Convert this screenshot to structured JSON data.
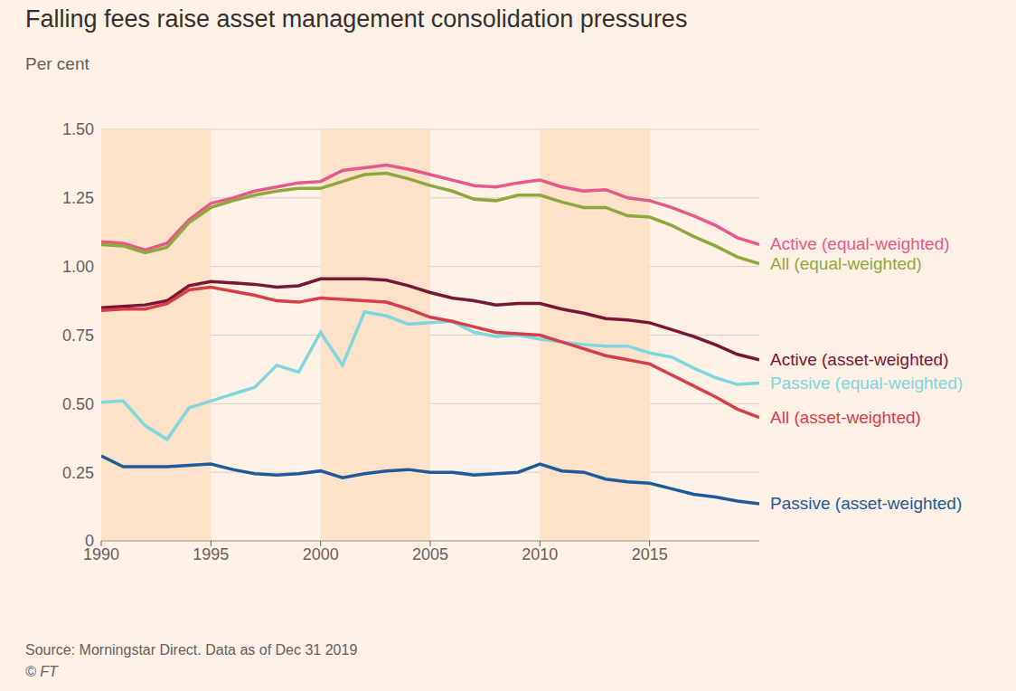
{
  "chart_data": {
    "type": "line",
    "title": "Falling fees raise asset management consolidation pressures",
    "subtitle": "Per cent",
    "source": "Source: Morningstar Direct. Data as of Dec 31 2019",
    "credit": "© FT",
    "x": [
      1990,
      1991,
      1992,
      1993,
      1994,
      1995,
      1996,
      1997,
      1998,
      1999,
      2000,
      2001,
      2002,
      2003,
      2004,
      2005,
      2006,
      2007,
      2008,
      2009,
      2010,
      2011,
      2012,
      2013,
      2014,
      2015,
      2016,
      2017,
      2018,
      2019,
      2020
    ],
    "xlim": [
      1990,
      2020
    ],
    "xticks": [
      1990,
      1995,
      2000,
      2005,
      2010,
      2015
    ],
    "ylim": [
      0,
      1.5
    ],
    "yticks": [
      0,
      0.25,
      {
        "value": 0.5,
        "label": "0.50"
      },
      0.75,
      {
        "value": 1,
        "label": "1.00"
      },
      1.25,
      {
        "value": 1.5,
        "label": "1.50"
      }
    ],
    "grid": true,
    "shaded_periods": [
      [
        1990,
        1995
      ],
      [
        2000,
        2005
      ],
      [
        2010,
        2015
      ]
    ],
    "series": [
      {
        "name": "Active (equal-weighted)",
        "color": "#e8588c",
        "values": [
          1.09,
          1.085,
          1.06,
          1.085,
          1.17,
          1.23,
          1.25,
          1.275,
          1.29,
          1.305,
          1.31,
          1.35,
          1.36,
          1.37,
          1.355,
          1.335,
          1.315,
          1.295,
          1.29,
          1.305,
          1.315,
          1.29,
          1.275,
          1.28,
          1.25,
          1.24,
          1.215,
          1.185,
          1.15,
          1.105,
          1.08
        ]
      },
      {
        "name": "All (equal-weighted)",
        "color": "#8fa83c",
        "values": [
          1.08,
          1.075,
          1.05,
          1.07,
          1.16,
          1.215,
          1.24,
          1.26,
          1.275,
          1.285,
          1.285,
          1.31,
          1.335,
          1.34,
          1.32,
          1.295,
          1.275,
          1.245,
          1.24,
          1.26,
          1.26,
          1.235,
          1.215,
          1.215,
          1.185,
          1.18,
          1.15,
          1.11,
          1.075,
          1.035,
          1.01
        ]
      },
      {
        "name": "Active (asset-weighted)",
        "color": "#7a1636",
        "values": [
          0.85,
          0.855,
          0.86,
          0.875,
          0.93,
          0.945,
          0.94,
          0.935,
          0.925,
          0.93,
          0.955,
          0.955,
          0.955,
          0.95,
          0.93,
          0.905,
          0.885,
          0.875,
          0.86,
          0.865,
          0.865,
          0.845,
          0.83,
          0.81,
          0.805,
          0.795,
          0.77,
          0.745,
          0.715,
          0.68,
          0.66
        ]
      },
      {
        "name": "Passive (equal-weighted)",
        "color": "#7ed6df",
        "values": [
          0.505,
          0.51,
          0.42,
          0.37,
          0.485,
          0.51,
          0.535,
          0.56,
          0.64,
          0.615,
          0.76,
          0.64,
          0.835,
          0.82,
          0.79,
          0.795,
          0.8,
          0.76,
          0.745,
          0.75,
          0.735,
          0.725,
          0.715,
          0.71,
          0.71,
          0.685,
          0.67,
          0.63,
          0.595,
          0.57,
          0.575
        ]
      },
      {
        "name": "All (asset-weighted)",
        "color": "#d63e48",
        "values": [
          0.84,
          0.845,
          0.845,
          0.865,
          0.915,
          0.925,
          0.91,
          0.895,
          0.875,
          0.87,
          0.885,
          0.88,
          0.875,
          0.87,
          0.845,
          0.815,
          0.8,
          0.78,
          0.76,
          0.755,
          0.75,
          0.725,
          0.7,
          0.675,
          0.66,
          0.645,
          0.605,
          0.565,
          0.525,
          0.48,
          0.45
        ]
      },
      {
        "name": "Passive (asset-weighted)",
        "color": "#1e5c99",
        "values": [
          0.31,
          0.27,
          0.27,
          0.27,
          0.275,
          0.28,
          0.26,
          0.245,
          0.24,
          0.245,
          0.255,
          0.23,
          0.245,
          0.255,
          0.26,
          0.25,
          0.25,
          0.24,
          0.245,
          0.25,
          0.28,
          0.255,
          0.25,
          0.225,
          0.215,
          0.21,
          0.19,
          0.17,
          0.16,
          0.145,
          0.135
        ]
      }
    ]
  }
}
